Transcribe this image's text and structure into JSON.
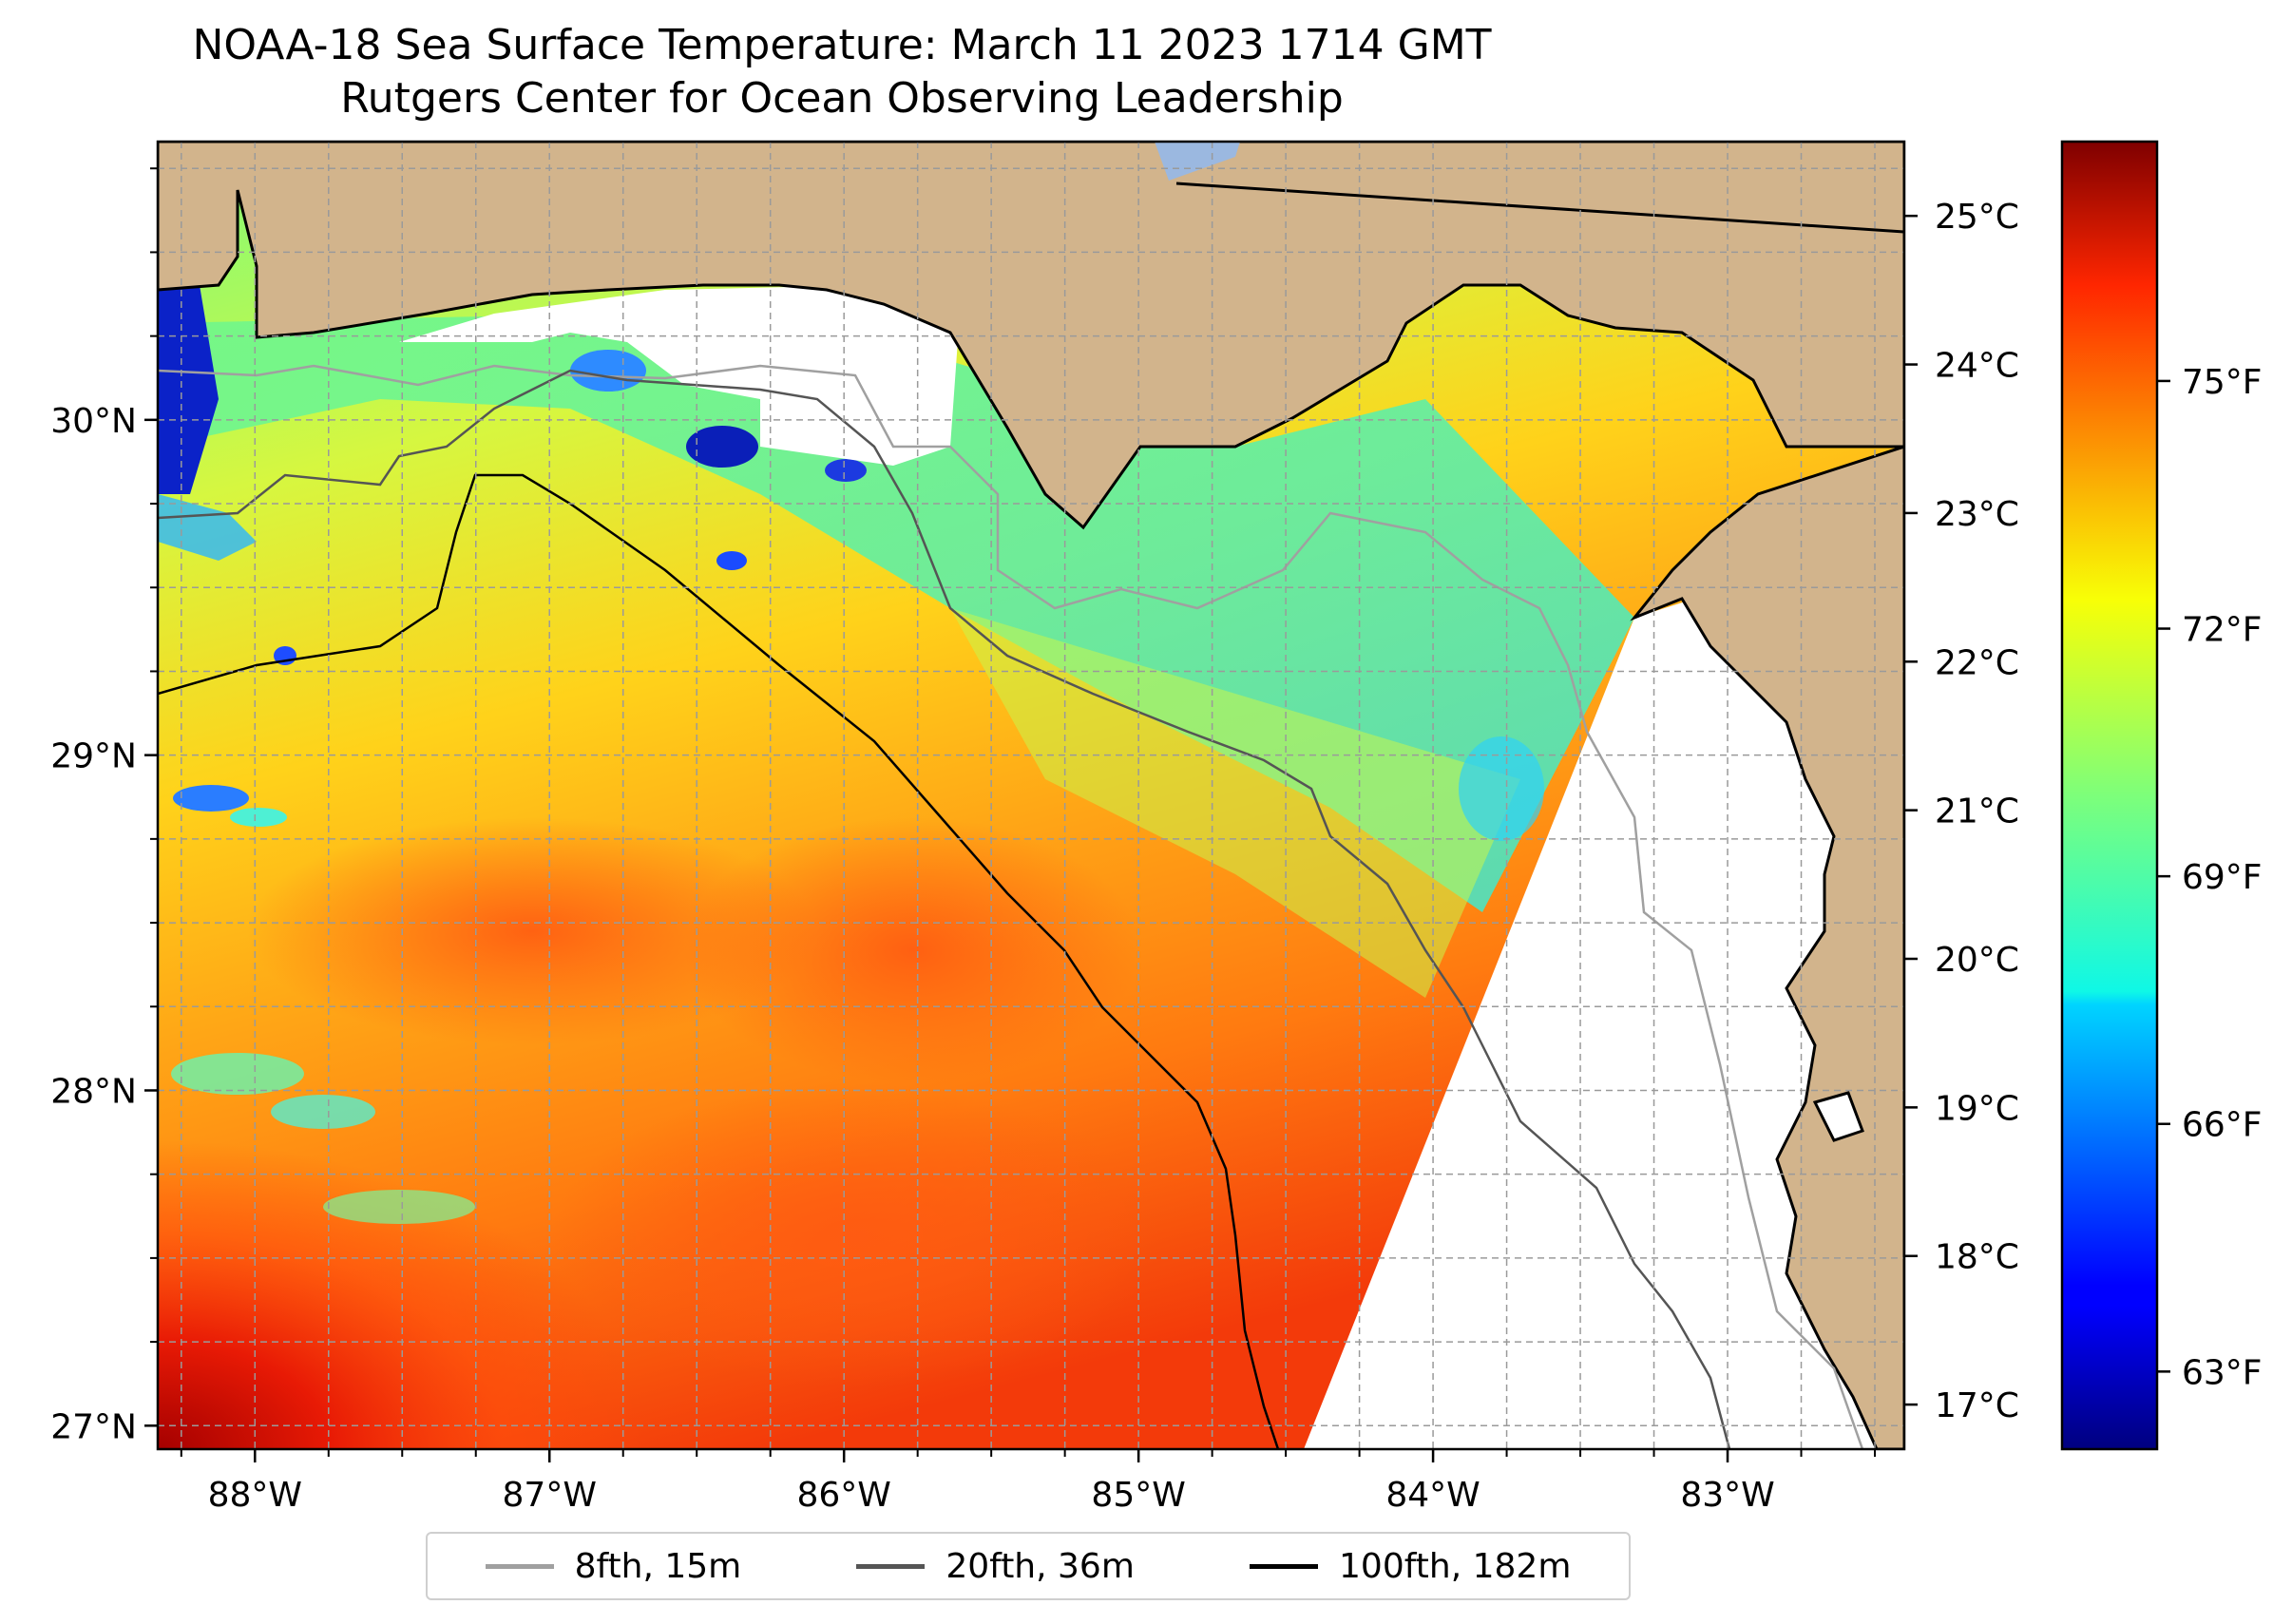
{
  "title": "NOAA-18 Sea Surface Temperature: March 11 2023 1714 GMT",
  "subtitle": "Rutgers Center for Ocean Observing Leadership",
  "map": {
    "lon_range": [
      -88.33,
      -82.4
    ],
    "lat_range": [
      26.93,
      30.83
    ],
    "lon_ticks": [
      {
        "value": -88,
        "label": "88°W"
      },
      {
        "value": -87,
        "label": "87°W"
      },
      {
        "value": -86,
        "label": "86°W"
      },
      {
        "value": -85,
        "label": "85°W"
      },
      {
        "value": -84,
        "label": "84°W"
      },
      {
        "value": -83,
        "label": "83°W"
      }
    ],
    "lat_ticks": [
      {
        "value": 27,
        "label": "27°N"
      },
      {
        "value": 28,
        "label": "28°N"
      },
      {
        "value": 29,
        "label": "29°N"
      },
      {
        "value": 30,
        "label": "30°N"
      }
    ],
    "gridlines": true,
    "land_color": "#d2b48c"
  },
  "colorbar": {
    "colormap": "jet",
    "celsius_range": [
      16.7,
      25.5
    ],
    "celsius_ticks": [
      "17°C",
      "18°C",
      "19°C",
      "20°C",
      "21°C",
      "22°C",
      "23°C",
      "24°C",
      "25°C"
    ],
    "fahrenheit_ticks": [
      "63°F",
      "66°F",
      "69°F",
      "72°F",
      "75°F"
    ]
  },
  "legend": {
    "placement": "bottom",
    "items": [
      {
        "label": "8fth, 15m",
        "color": "#a0a0a0"
      },
      {
        "label": "20fth, 36m",
        "color": "#555555"
      },
      {
        "label": "100fth, 182m",
        "color": "#000000"
      }
    ]
  }
}
